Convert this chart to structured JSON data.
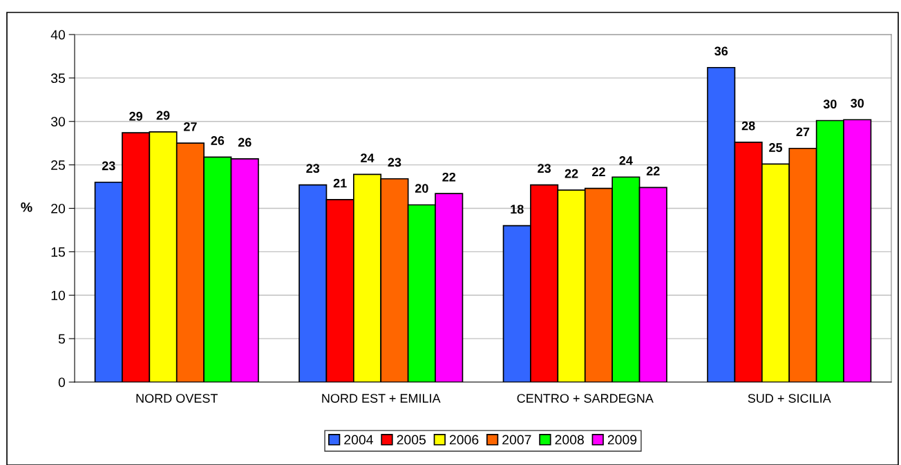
{
  "chart_data": {
    "type": "bar",
    "ylabel": "%",
    "categories": [
      "NORD OVEST",
      "NORD EST + EMILIA",
      "CENTRO + SARDEGNA",
      "SUD + SICILIA"
    ],
    "series": [
      {
        "name": "2004",
        "color": "#3366ff",
        "values": [
          23.0,
          22.7,
          18.0,
          36.2
        ],
        "value_labels": [
          "23",
          "23",
          "18",
          "36"
        ]
      },
      {
        "name": "2005",
        "color": "#ff0000",
        "values": [
          28.7,
          21.0,
          22.7,
          27.6
        ],
        "value_labels": [
          "29",
          "21",
          "23",
          "28"
        ]
      },
      {
        "name": "2006",
        "color": "#ffff00",
        "values": [
          28.8,
          23.9,
          22.1,
          25.1
        ],
        "value_labels": [
          "29",
          "24",
          "22",
          "25"
        ]
      },
      {
        "name": "2007",
        "color": "#ff6600",
        "values": [
          27.5,
          23.4,
          22.3,
          26.9
        ],
        "value_labels": [
          "27",
          "23",
          "22",
          "27"
        ]
      },
      {
        "name": "2008",
        "color": "#00ff00",
        "values": [
          25.9,
          20.4,
          23.6,
          30.1
        ],
        "value_labels": [
          "26",
          "20",
          "24",
          "30"
        ]
      },
      {
        "name": "2009",
        "color": "#ff00ff",
        "values": [
          25.7,
          21.7,
          22.4,
          30.2
        ],
        "value_labels": [
          "26",
          "22",
          "22",
          "30"
        ]
      }
    ],
    "ylim": [
      0,
      40
    ],
    "yticks": [
      0,
      5,
      10,
      15,
      20,
      25,
      30,
      35,
      40
    ],
    "grid": "y",
    "legend": "bottom"
  }
}
